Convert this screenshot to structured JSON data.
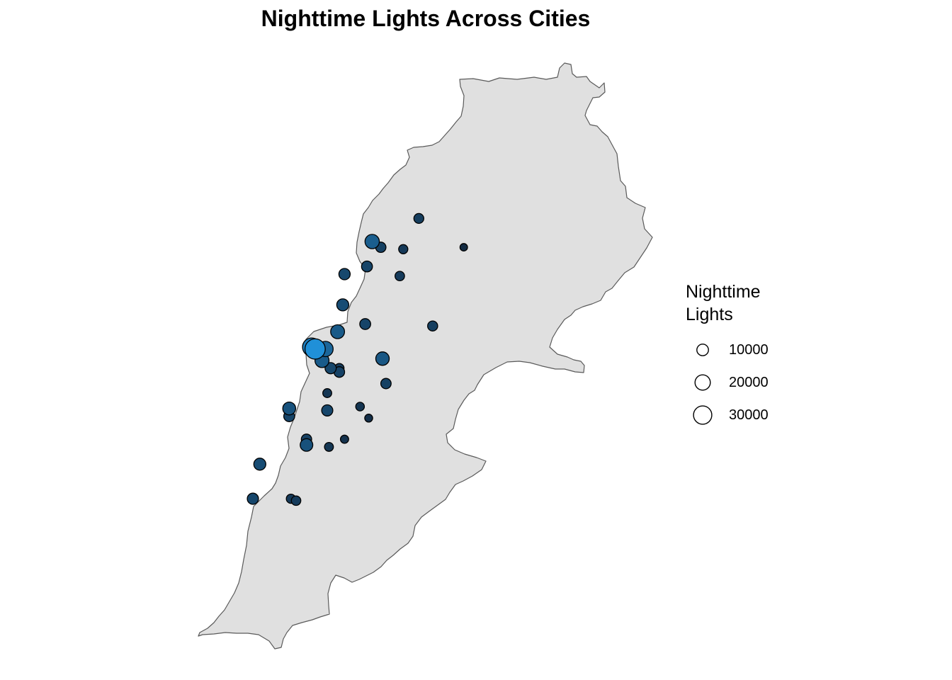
{
  "title": "Nighttime Lights Across Cities",
  "colors": {
    "land_fill": "#e0e0e0",
    "land_stroke": "#5a5a5a",
    "point_stroke": "#000000",
    "low": "#132b43",
    "high": "#2090d8"
  },
  "legend": {
    "title_lines": [
      "Nighttime",
      "Lights"
    ],
    "entries": [
      {
        "value": 10000,
        "label": "10000"
      },
      {
        "value": 20000,
        "label": "20000"
      },
      {
        "value": 30000,
        "label": "30000"
      }
    ]
  },
  "cities": [
    {
      "value": 6500,
      "lon": 36.12,
      "lat": 34.55
    },
    {
      "value": 17000,
      "lon": 35.85,
      "lat": 34.43
    },
    {
      "value": 7500,
      "lon": 35.9,
      "lat": 34.4
    },
    {
      "value": 5500,
      "lon": 36.03,
      "lat": 34.39
    },
    {
      "value": 3000,
      "lon": 36.38,
      "lat": 34.4
    },
    {
      "value": 8500,
      "lon": 35.82,
      "lat": 34.3
    },
    {
      "value": 9500,
      "lon": 35.69,
      "lat": 34.26
    },
    {
      "value": 6000,
      "lon": 36.01,
      "lat": 34.25
    },
    {
      "value": 11000,
      "lon": 35.68,
      "lat": 34.1
    },
    {
      "value": 8500,
      "lon": 35.81,
      "lat": 34.0
    },
    {
      "value": 7000,
      "lon": 36.2,
      "lat": 33.99
    },
    {
      "value": 15500,
      "lon": 35.65,
      "lat": 33.96
    },
    {
      "value": 30000,
      "lon": 35.5,
      "lat": 33.88
    },
    {
      "value": 38000,
      "lon": 35.52,
      "lat": 33.87
    },
    {
      "value": 20000,
      "lon": 35.58,
      "lat": 33.87
    },
    {
      "value": 16000,
      "lon": 35.56,
      "lat": 33.81
    },
    {
      "value": 14500,
      "lon": 35.91,
      "lat": 33.82
    },
    {
      "value": 9000,
      "lon": 35.61,
      "lat": 33.77
    },
    {
      "value": 6000,
      "lon": 35.66,
      "lat": 33.77
    },
    {
      "value": 8000,
      "lon": 35.66,
      "lat": 33.75
    },
    {
      "value": 7500,
      "lon": 35.93,
      "lat": 33.69
    },
    {
      "value": 5000,
      "lon": 35.59,
      "lat": 33.64
    },
    {
      "value": 4500,
      "lon": 35.78,
      "lat": 33.57
    },
    {
      "value": 13000,
      "lon": 35.37,
      "lat": 33.56
    },
    {
      "value": 9000,
      "lon": 35.59,
      "lat": 33.55
    },
    {
      "value": 8500,
      "lon": 35.37,
      "lat": 33.52
    },
    {
      "value": 3500,
      "lon": 35.83,
      "lat": 33.51
    },
    {
      "value": 7500,
      "lon": 35.47,
      "lat": 33.4
    },
    {
      "value": 4000,
      "lon": 35.69,
      "lat": 33.4
    },
    {
      "value": 12500,
      "lon": 35.47,
      "lat": 33.37
    },
    {
      "value": 5000,
      "lon": 35.6,
      "lat": 33.36
    },
    {
      "value": 11000,
      "lon": 35.2,
      "lat": 33.27
    },
    {
      "value": 9000,
      "lon": 35.16,
      "lat": 33.09
    },
    {
      "value": 6000,
      "lon": 35.41,
      "lat": 33.08
    },
    {
      "value": 5500,
      "lon": 35.38,
      "lat": 33.09
    }
  ]
}
